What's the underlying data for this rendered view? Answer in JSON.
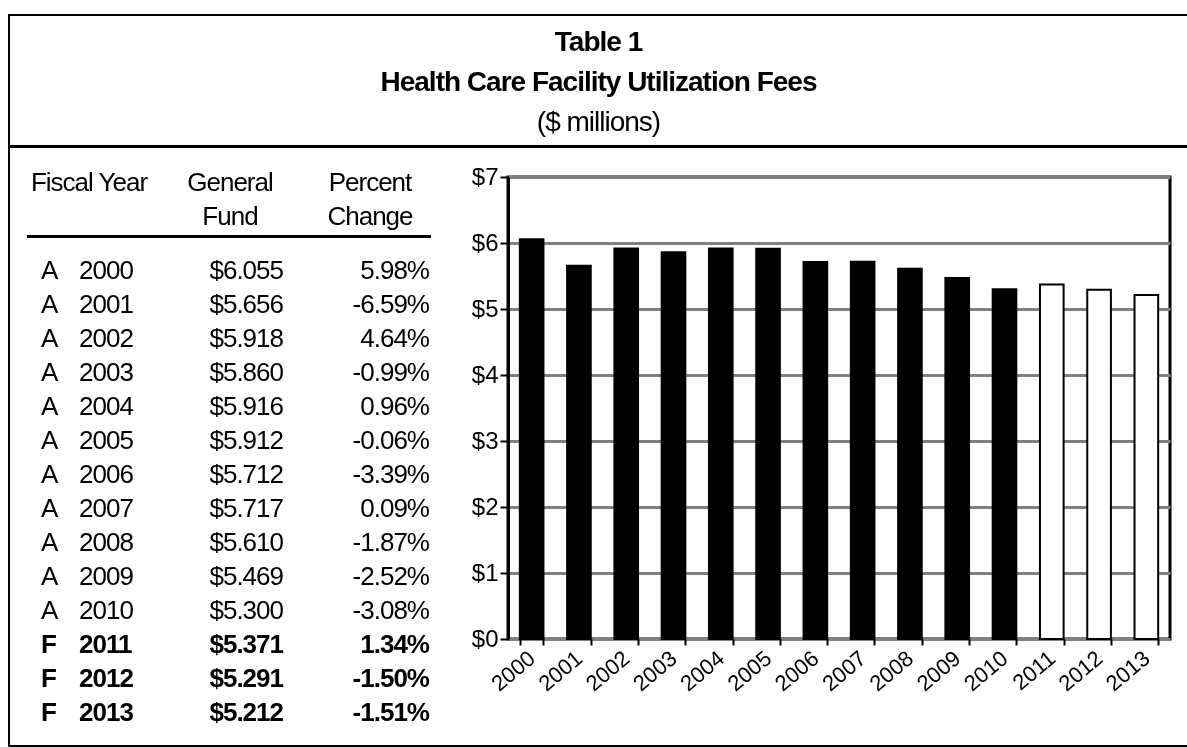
{
  "chart_data": {
    "type": "bar",
    "title": "Table 1",
    "subtitle": "Health Care Facility Utilization Fees",
    "categories": [
      "2000",
      "2001",
      "2002",
      "2003",
      "2004",
      "2005",
      "2006",
      "2007",
      "2008",
      "2009",
      "2010",
      "2011",
      "2012",
      "2013"
    ],
    "values": [
      6.055,
      5.656,
      5.918,
      5.86,
      5.916,
      5.912,
      5.712,
      5.717,
      5.61,
      5.469,
      5.3,
      5.371,
      5.291,
      5.212
    ],
    "colors": [
      "#000000",
      "#000000",
      "#000000",
      "#000000",
      "#000000",
      "#000000",
      "#000000",
      "#000000",
      "#000000",
      "#000000",
      "#000000",
      "#ffffff",
      "#ffffff",
      "#ffffff"
    ],
    "ylim": [
      0,
      7
    ],
    "yticks": [
      {
        "value": 0,
        "label": "$0"
      },
      {
        "value": 1,
        "label": "$1"
      },
      {
        "value": 2,
        "label": "$2"
      },
      {
        "value": 3,
        "label": "$3"
      },
      {
        "value": 4,
        "label": "$4"
      },
      {
        "value": 5,
        "label": "$5"
      },
      {
        "value": 6,
        "label": "$6"
      },
      {
        "value": 7,
        "label": "$7"
      }
    ],
    "grid": "y",
    "annotations": [
      "($ millions)",
      "Fiscal Year",
      "General Fund",
      "Percent Change",
      "A",
      "$6.055",
      "5.98%",
      "A",
      "$5.656",
      "-6.59%",
      "A",
      "$5.918",
      "4.64%",
      "A",
      "$5.860",
      "-0.99%",
      "A",
      "$5.916",
      "0.96%",
      "A",
      "$5.912",
      "-0.06%",
      "A",
      "$5.712",
      "-3.39%",
      "A",
      "$5.717",
      "0.09%",
      "A",
      "$5.610",
      "-1.87%",
      "A",
      "$5.469",
      "-2.52%",
      "A",
      "$5.300",
      "-3.08%",
      "F",
      "$5.371",
      "1.34%",
      "F",
      "$5.291",
      "-1.50%",
      "F",
      "$5.212",
      "-1.51%"
    ]
  }
}
